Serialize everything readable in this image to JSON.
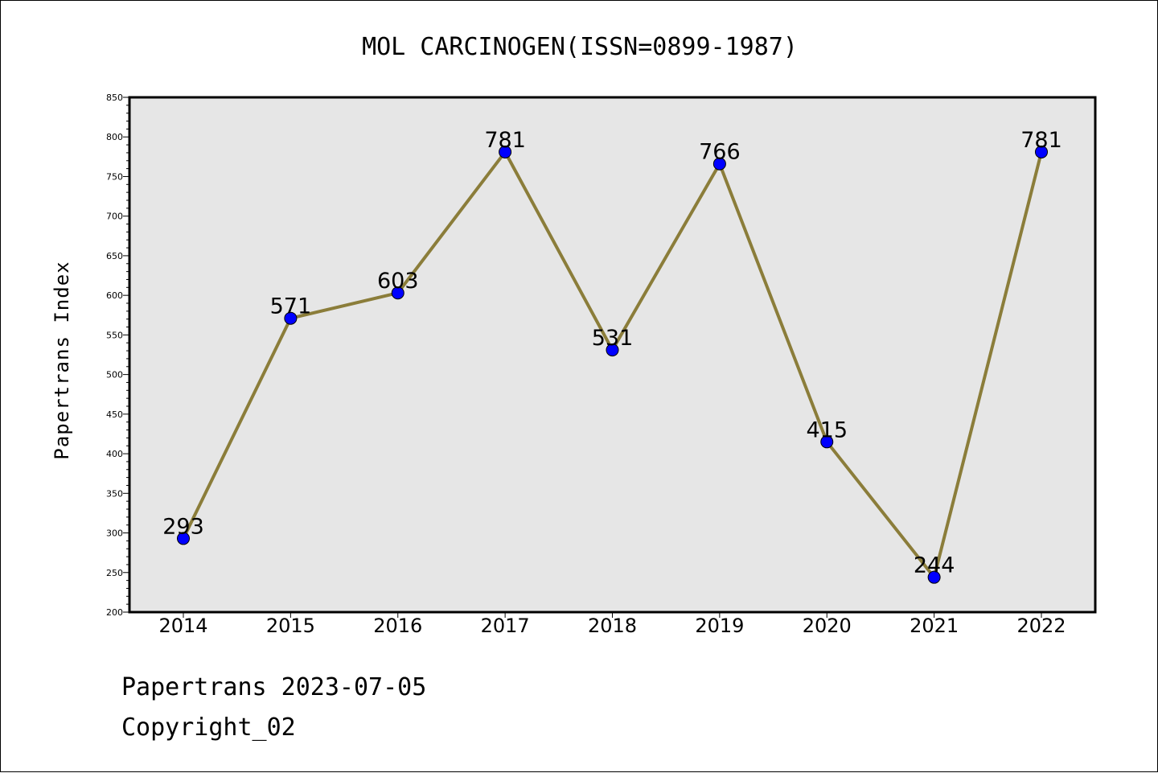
{
  "chart_data": {
    "type": "line",
    "title": "MOL CARCINOGEN(ISSN=0899-1987)",
    "ylabel": "Papertrans Index",
    "xlabel": "",
    "categories": [
      "2014",
      "2015",
      "2016",
      "2017",
      "2018",
      "2019",
      "2020",
      "2021",
      "2022"
    ],
    "values": [
      293,
      571,
      603,
      781,
      531,
      766,
      415,
      244,
      781
    ],
    "data_labels": [
      "293",
      "571",
      "603",
      "781",
      "531",
      "766",
      "415",
      "244",
      "781"
    ],
    "ylim": [
      200,
      850
    ],
    "yticks": [
      200,
      250,
      300,
      350,
      400,
      450,
      500,
      550,
      600,
      650,
      700,
      750,
      800,
      850
    ],
    "grid": false,
    "legend": "none",
    "colors": {
      "line": "#8B7D3A",
      "marker": "#0000FF",
      "plot_background": "#E6E6E6"
    }
  },
  "footer": {
    "date_line": "Papertrans 2023-07-05",
    "copyright": "Copyright_02"
  }
}
